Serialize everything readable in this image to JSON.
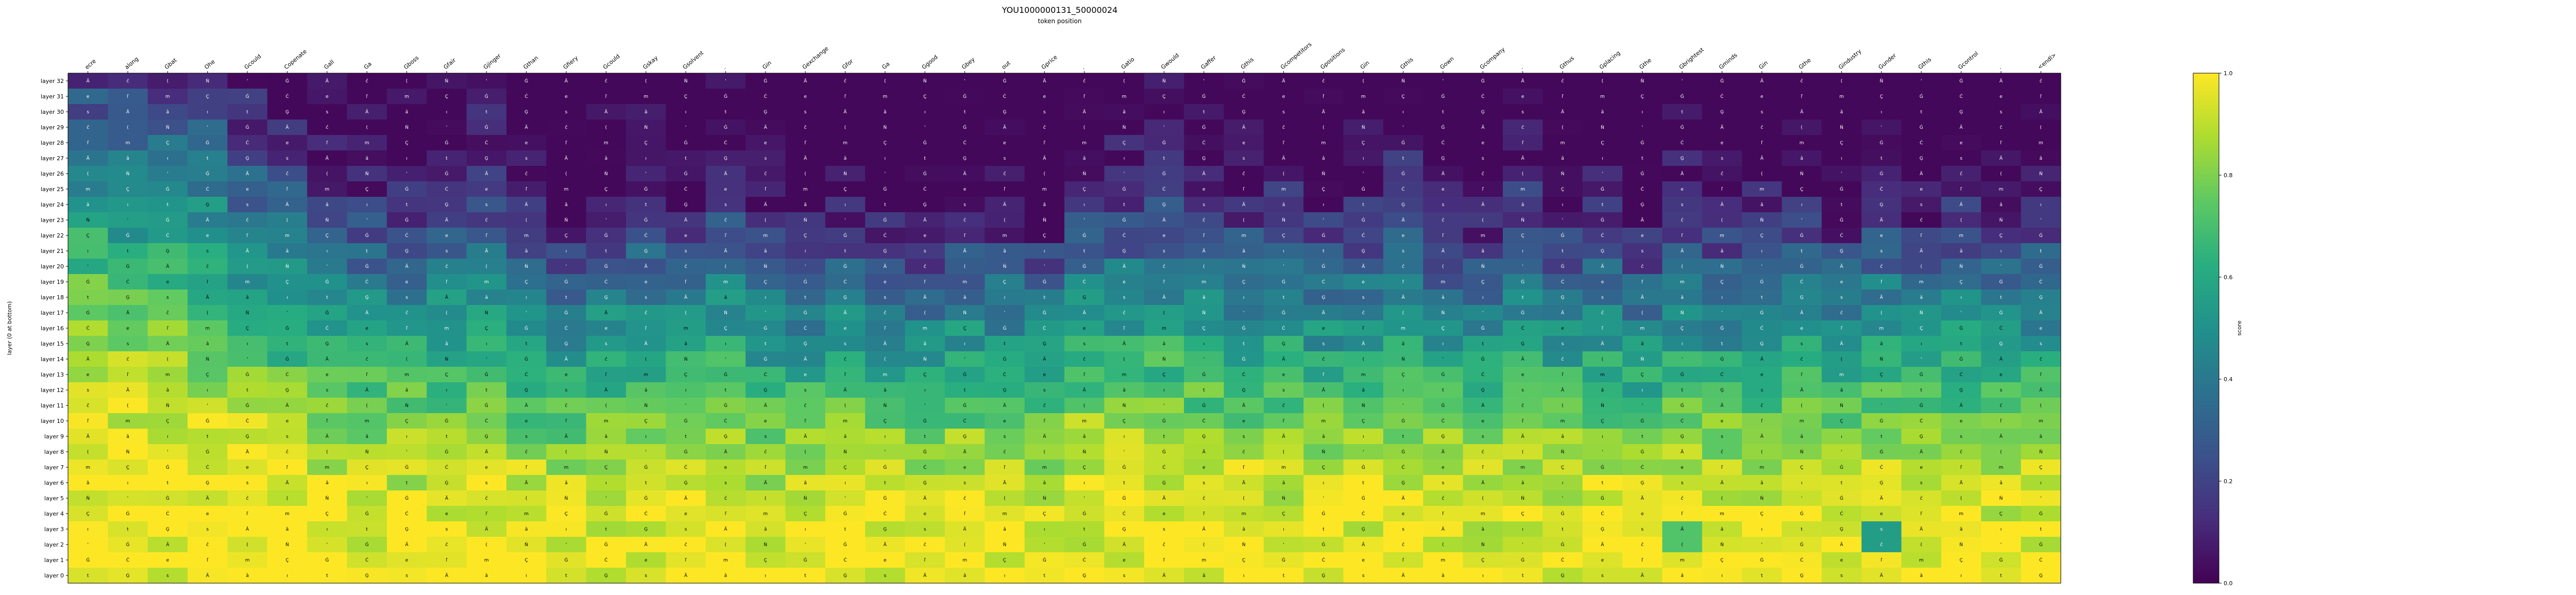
{
  "chart_data": {
    "type": "heatmap",
    "title": "YOU1000000131_50000024",
    "subtitle": "token position",
    "xlabel": "token position",
    "ylabel": "layer (0 at bottom)",
    "colorbar_label": "score",
    "colorscale": "viridis",
    "vmin": 0.0,
    "vmax": 1.0,
    "colorbar_ticks": [
      0.0,
      0.2,
      0.4,
      0.6,
      0.8,
      1.0
    ],
    "x_tokens": [
      "ecre",
      "along",
      "Gbat",
      "Ohe",
      "Gcould",
      "Copenate",
      "Gall",
      "Ga",
      "Gboss",
      "Gfair",
      "Gjinger",
      "Gthan",
      "Gfiery",
      "Gcould",
      "Gskay",
      "Gsolvent",
      ".",
      "Gin",
      "Gexchange",
      "Gfor",
      "Ga",
      "Ggood",
      "Gbey",
      "out",
      "Gprice",
      ".",
      "Gatio",
      "Gwould",
      "Gaffer",
      "Gthis",
      "Gcompetitors",
      "Gpositions",
      "Gin",
      "Gthis",
      "Gown",
      "Gcompany",
      ".",
      "Gthus",
      "Gplacing",
      "Gthe",
      "Gbrightest",
      "Gminds",
      "Gin",
      "Gthe",
      "Gindustry",
      "Gunder",
      "Gthis",
      "Gcontrol",
      ".",
      "<endl>"
    ],
    "y_layers": [
      "layer 32",
      "layer 31",
      "layer 30",
      "layer 29",
      "layer 28",
      "layer 27",
      "layer 26",
      "layer 25",
      "layer 24",
      "layer 23",
      "layer 22",
      "layer 21",
      "layer 20",
      "layer 19",
      "layer 18",
      "layer 17",
      "layer 16",
      "layer 15",
      "layer 14",
      "layer 13",
      "layer 12",
      "layer 11",
      "layer 10",
      "layer 9",
      "layer 8",
      "layer 7",
      "layer 6",
      "layer 5",
      "layer 4",
      "layer 3",
      "layer 2",
      "layer 1",
      "layer 0"
    ],
    "cell_glyphs": [
      "Ä",
      "Ġ",
      "â",
      "ĉ",
      "Ċ",
      "ı",
      "(",
      "e",
      "t",
      "Ń",
      "ľ",
      "Ģ",
      "'",
      "m",
      "s",
      "Ġ",
      "Ç",
      "Ä"
    ],
    "profile": [
      0.02,
      0.05,
      0.07,
      0.09,
      0.12,
      0.15,
      0.18,
      0.22,
      0.26,
      0.3,
      0.34,
      0.38,
      0.43,
      0.48,
      0.52,
      0.56,
      0.6,
      0.64,
      0.68,
      0.72,
      0.76,
      0.8,
      0.84,
      0.87,
      0.9,
      0.93,
      0.95,
      0.96,
      0.97,
      0.98,
      0.98,
      0.99,
      0.99
    ],
    "col_bias": [
      0.28,
      0.26,
      0.24,
      0.22,
      0.1,
      0.02,
      -0.08,
      -0.1,
      -0.12,
      -0.08,
      -0.04,
      -0.18,
      -0.22,
      -0.14,
      -0.1,
      -0.16,
      -0.08,
      -0.2,
      -0.24,
      -0.18,
      -0.22,
      -0.26,
      -0.16,
      -0.2,
      -0.24,
      -0.06,
      -0.08,
      -0.04,
      -0.1,
      -0.14,
      -0.12,
      -0.18,
      -0.14,
      -0.06,
      -0.2,
      -0.22,
      -0.1,
      -0.2,
      -0.16,
      -0.26,
      -0.14,
      -0.2,
      -0.18,
      -0.16,
      -0.22,
      -0.12,
      -0.2,
      -0.14,
      -0.18,
      -0.16
    ],
    "highlights": [
      {
        "token_index": 40,
        "layers": [
          "layer 3",
          "layer 2"
        ],
        "value": 0.72
      },
      {
        "token_index": 45,
        "layers": [
          "layer 3",
          "layer 2"
        ],
        "value": 0.55
      }
    ]
  }
}
